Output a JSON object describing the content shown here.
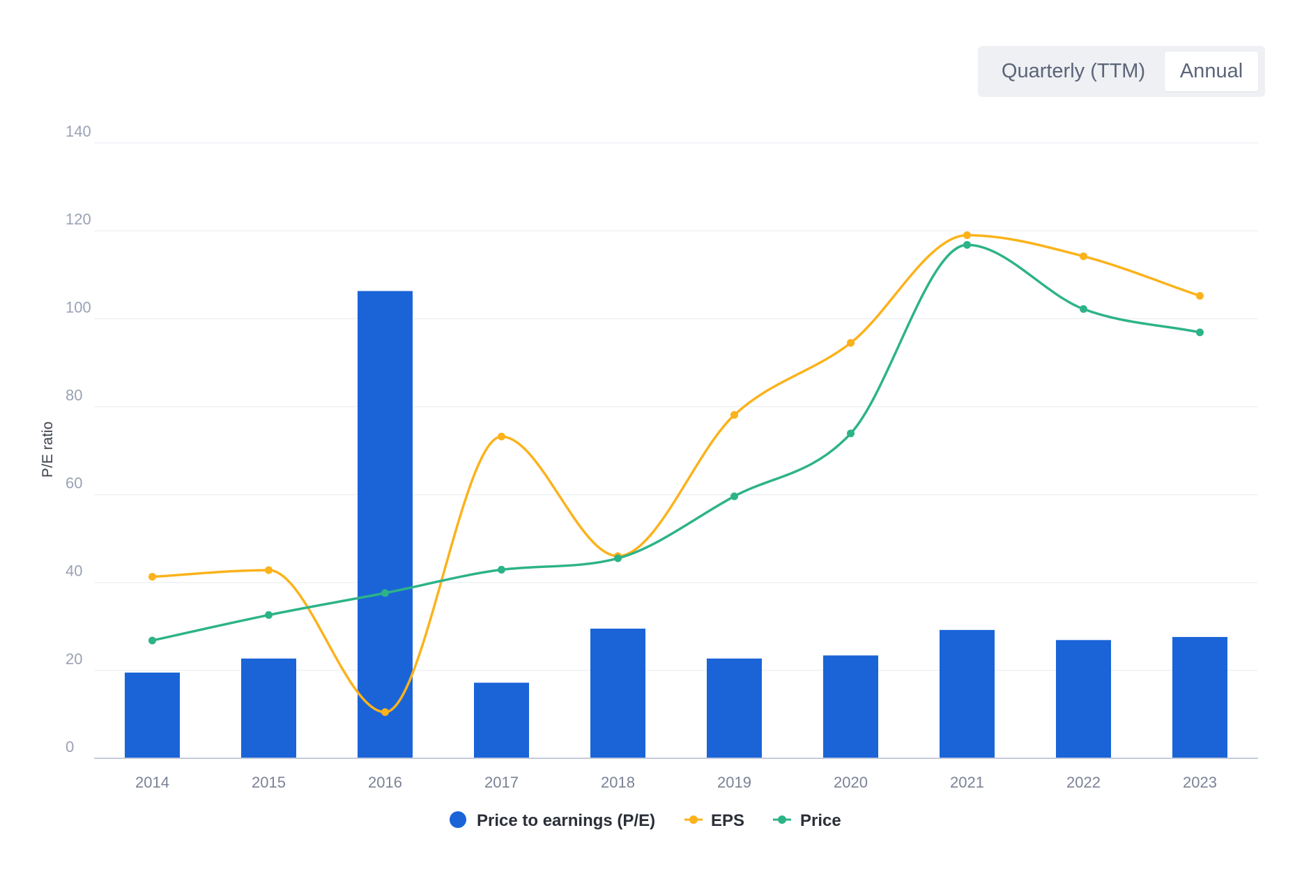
{
  "toggle": {
    "quarterly_label": "Quarterly (TTM)",
    "annual_label": "Annual",
    "selected": "Annual"
  },
  "chart_data": {
    "type": "bar",
    "categories": [
      "2014",
      "2015",
      "2016",
      "2017",
      "2018",
      "2019",
      "2020",
      "2021",
      "2022",
      "2023"
    ],
    "ylabel": "P/E ratio",
    "xlabel": "",
    "ylim": [
      0,
      140
    ],
    "yticks": [
      0,
      20,
      40,
      60,
      80,
      100,
      120,
      140
    ],
    "grid": true,
    "legend_position": "bottom-center",
    "series": [
      {
        "name": "Price to earnings (P/E)",
        "kind": "bar",
        "color": "#1a64d8",
        "values": [
          19.5,
          22.7,
          106.3,
          17.2,
          29.5,
          22.7,
          23.4,
          29.2,
          26.9,
          27.6
        ]
      },
      {
        "name": "EPS",
        "kind": "line",
        "color": "#fbb21b",
        "values": [
          41.3,
          42.8,
          10.5,
          73.2,
          46.0,
          78.1,
          94.5,
          119.0,
          114.2,
          105.2
        ]
      },
      {
        "name": "Price",
        "kind": "line",
        "color": "#2db388",
        "values": [
          26.8,
          32.6,
          37.6,
          42.9,
          45.5,
          59.6,
          73.9,
          116.8,
          102.2,
          96.9
        ]
      }
    ]
  }
}
